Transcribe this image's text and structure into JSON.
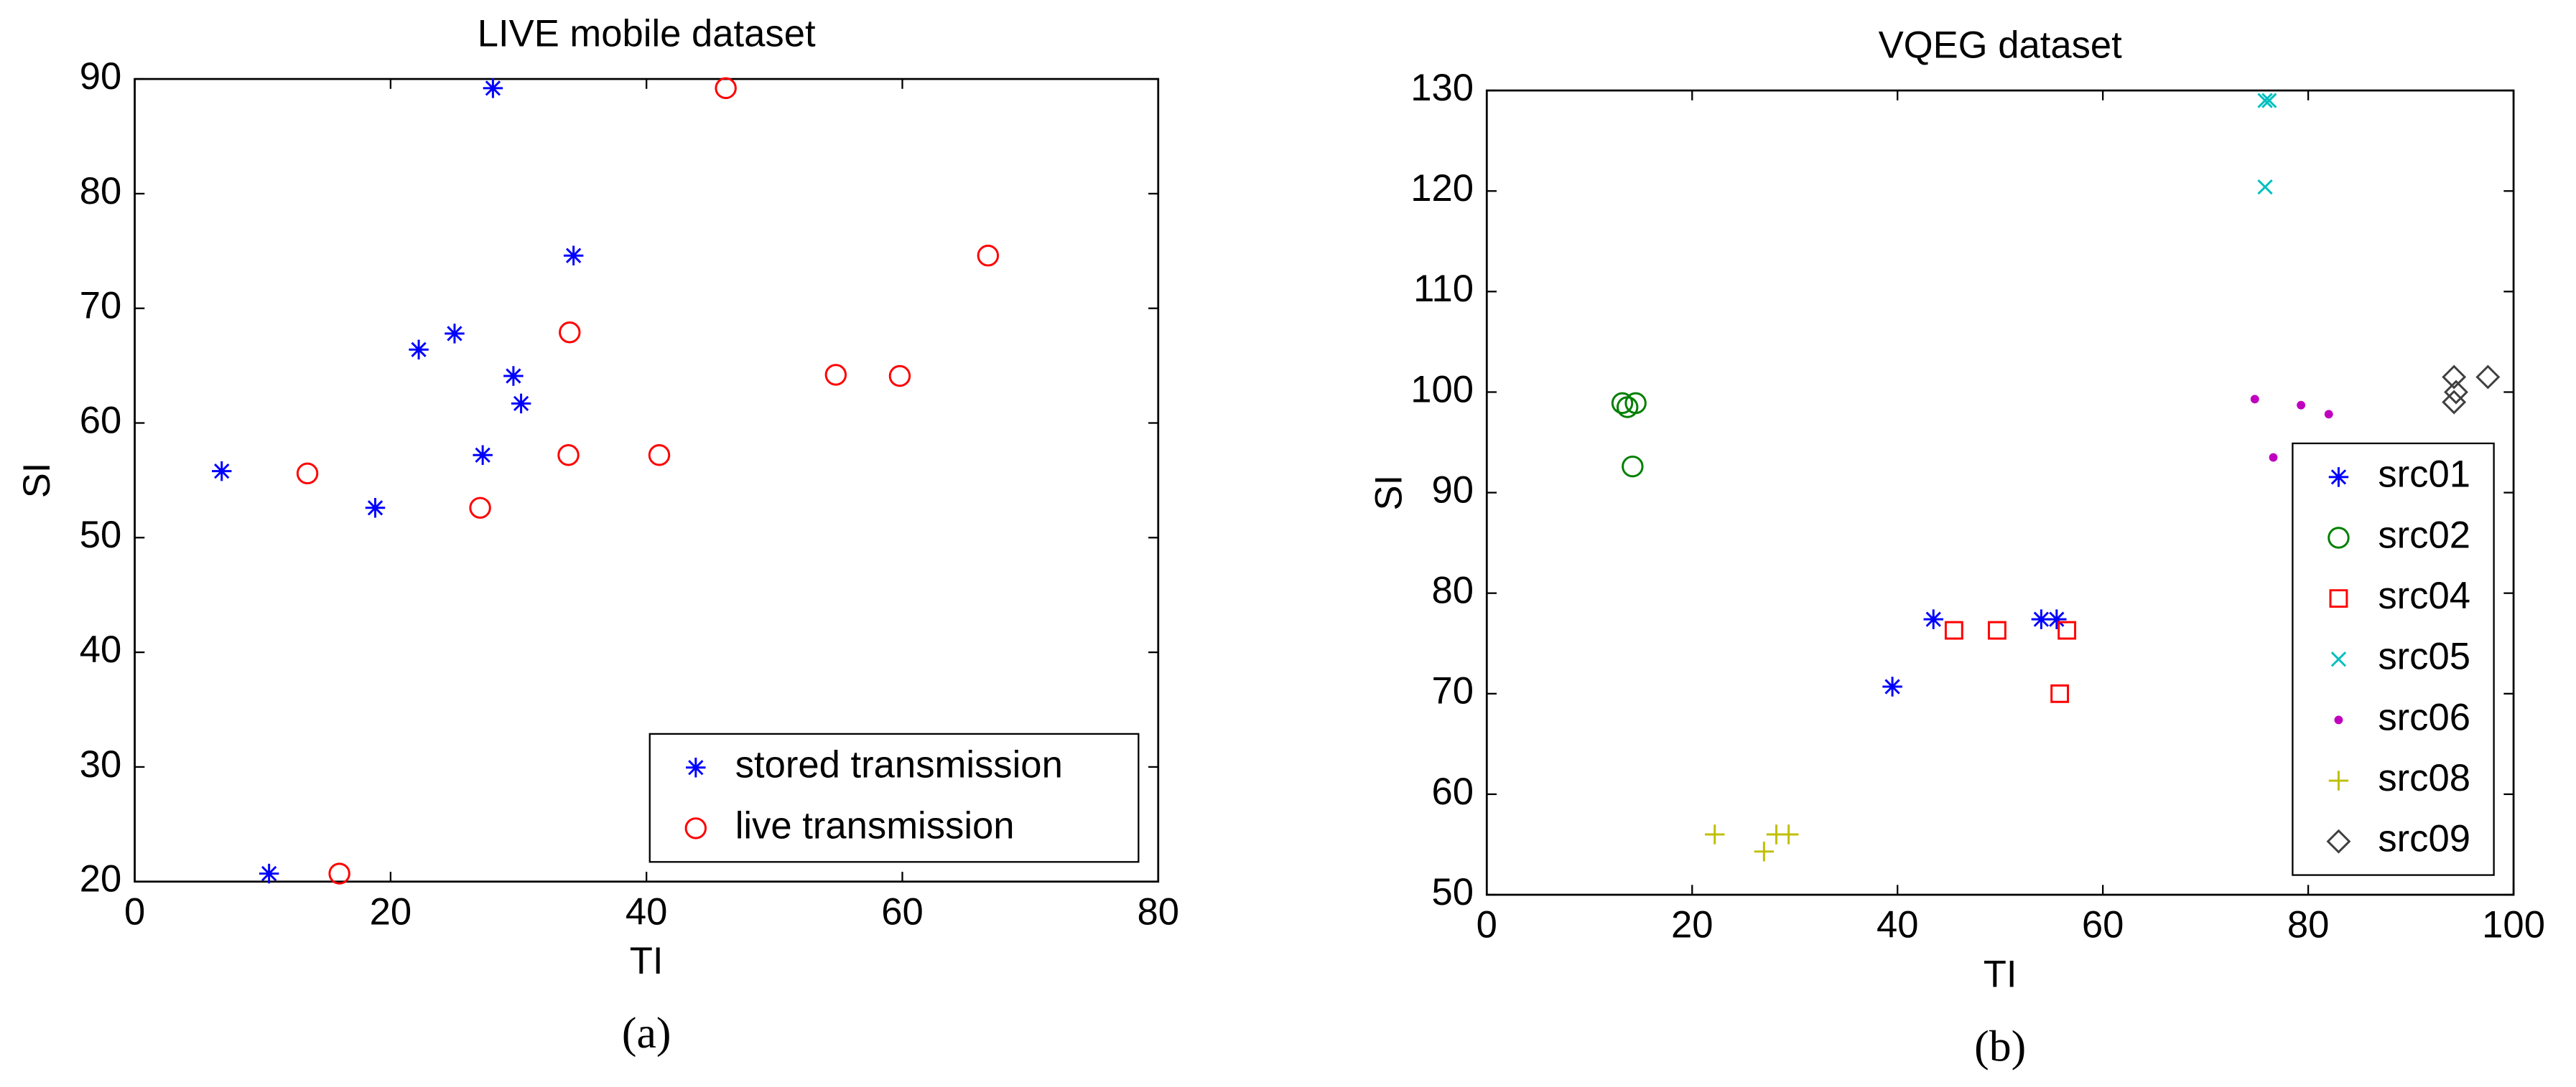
{
  "chart_data": [
    {
      "type": "scatter",
      "title": "LIVE mobile dataset",
      "xlabel": "TI",
      "ylabel": "SI",
      "caption": "(a)",
      "xlim": [
        0,
        80
      ],
      "xticks": [
        0,
        20,
        40,
        60,
        80
      ],
      "ylim": [
        20,
        90
      ],
      "yticks": [
        20,
        30,
        40,
        50,
        60,
        70,
        80,
        90
      ],
      "legend": "lower right",
      "series": [
        {
          "name": "stored transmission",
          "color": "#0000ff",
          "marker": "asterisk",
          "x": [
            6.8,
            10.5,
            18.8,
            22.2,
            25,
            27.2,
            28,
            29.6,
            30.2,
            34.3
          ],
          "values": [
            55.8,
            20.7,
            52.6,
            66.4,
            67.8,
            57.2,
            89.2,
            64.1,
            61.7,
            74.6
          ]
        },
        {
          "name": "live transmission",
          "color": "#ff0000",
          "marker": "circle",
          "x": [
            13.5,
            16,
            27,
            33.9,
            34,
            41,
            46.2,
            54.8,
            59.8,
            66.7
          ],
          "values": [
            55.6,
            20.7,
            52.6,
            57.2,
            67.9,
            57.2,
            89.2,
            64.2,
            64.1,
            74.6
          ]
        }
      ]
    },
    {
      "type": "scatter",
      "title": "VQEG dataset",
      "xlabel": "TI",
      "ylabel": "SI",
      "caption": "(b)",
      "xlim": [
        0,
        100
      ],
      "xticks": [
        0,
        20,
        40,
        60,
        80,
        100
      ],
      "ylim": [
        50,
        130
      ],
      "yticks": [
        50,
        60,
        70,
        80,
        90,
        100,
        110,
        120,
        130
      ],
      "legend": "lower right",
      "series": [
        {
          "name": "src01",
          "color": "#0000ff",
          "marker": "asterisk",
          "x": [
            39.5,
            43.5,
            54,
            55.5
          ],
          "values": [
            70.7,
            77.4,
            77.4,
            77.4
          ]
        },
        {
          "name": "src02",
          "color": "#008000",
          "marker": "circle",
          "x": [
            13.2,
            13.7,
            14.5,
            14.2
          ],
          "values": [
            98.9,
            98.5,
            98.9,
            92.6
          ]
        },
        {
          "name": "src04",
          "color": "#ff0000",
          "marker": "square",
          "x": [
            45.5,
            49.7,
            56.5,
            55.8
          ],
          "values": [
            76.3,
            76.3,
            76.3,
            70
          ]
        },
        {
          "name": "src05",
          "color": "#00bfbf",
          "marker": "x",
          "x": [
            75.8,
            76.2,
            75.8
          ],
          "values": [
            129,
            129,
            120.4
          ]
        },
        {
          "name": "src06",
          "color": "#bf00bf",
          "marker": "dot",
          "x": [
            74.8,
            79.3,
            82,
            76.6
          ],
          "values": [
            99.3,
            98.7,
            97.8,
            93.5
          ]
        },
        {
          "name": "src08",
          "color": "#bfbf00",
          "marker": "plus",
          "x": [
            22.2,
            27,
            28.2,
            29.4
          ],
          "values": [
            56,
            54.3,
            56,
            56
          ]
        },
        {
          "name": "src09",
          "color": "#404040",
          "marker": "diamond",
          "x": [
            94.2,
            94.4,
            94.2,
            97.5
          ],
          "values": [
            101.5,
            100,
            99,
            101.5
          ]
        }
      ]
    }
  ]
}
